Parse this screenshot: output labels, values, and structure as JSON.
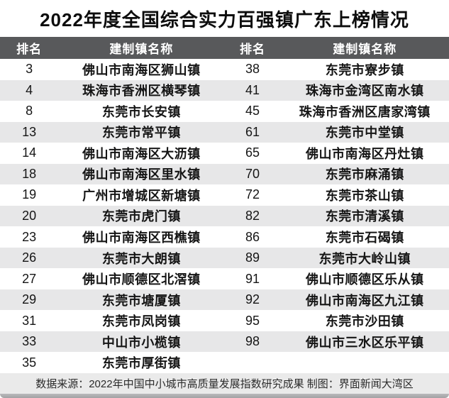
{
  "title": "2022年度全国综合实力百强镇广东上榜情况",
  "footer": {
    "note": "数据来源：2022年中国中小城市高质量发展指数研究成果 制图：界面新闻大湾区"
  },
  "colors": {
    "header_bg": "#58595b",
    "header_text": "#ffffff",
    "row_stripe": "#e7e7e8",
    "footer_bg": "#eaeaea",
    "body_text": "#151515"
  },
  "chart_data": {
    "type": "table",
    "title": "2022年度全国综合实力百强镇广东上榜情况",
    "columns": [
      "排名",
      "建制镇名称",
      "排名",
      "建制镇名称"
    ],
    "rows": [
      [
        "3",
        "佛山市南海区狮山镇",
        "38",
        "东莞市寮步镇"
      ],
      [
        "4",
        "珠海市香洲区横琴镇",
        "41",
        "珠海市金湾区南水镇"
      ],
      [
        "8",
        "东莞市长安镇",
        "45",
        "珠海市香洲区唐家湾镇"
      ],
      [
        "13",
        "东莞市常平镇",
        "61",
        "东莞市中堂镇"
      ],
      [
        "14",
        "佛山市南海区大沥镇",
        "65",
        "佛山市南海区丹灶镇"
      ],
      [
        "18",
        "佛山市南海区里水镇",
        "70",
        "东莞市麻涌镇"
      ],
      [
        "19",
        "广州市增城区新塘镇",
        "72",
        "东莞市茶山镇"
      ],
      [
        "20",
        "东莞市虎门镇",
        "82",
        "东莞市清溪镇"
      ],
      [
        "23",
        "佛山市南海区西樵镇",
        "86",
        "东莞市石碣镇"
      ],
      [
        "26",
        "东莞市大朗镇",
        "89",
        "东莞市大岭山镇"
      ],
      [
        "27",
        "佛山市顺德区北滘镇",
        "91",
        "佛山市顺德区乐从镇"
      ],
      [
        "29",
        "东莞市塘厦镇",
        "92",
        "佛山市南海区九江镇"
      ],
      [
        "31",
        "东莞市凤岗镇",
        "95",
        "东莞市沙田镇"
      ],
      [
        "33",
        "中山市小榄镇",
        "98",
        "佛山市三水区乐平镇"
      ],
      [
        "35",
        "东莞市厚街镇",
        "",
        ""
      ]
    ],
    "source_note": "数据来源：2022年中国中小城市高质量发展指数研究成果 制图：界面新闻大湾区"
  }
}
